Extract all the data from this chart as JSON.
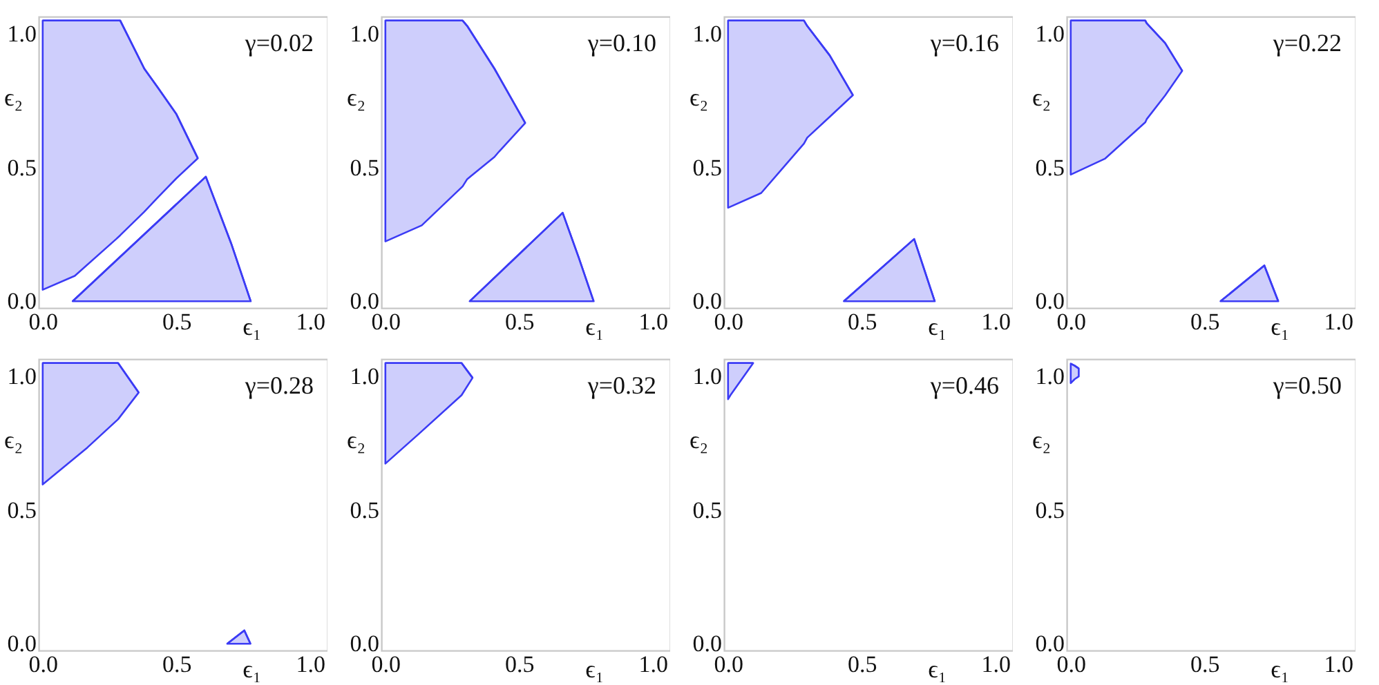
{
  "chart_data": [
    {
      "type": "line",
      "title": "γ=0.02",
      "xlabel": "ϵ₁",
      "ylabel": "ϵ₂",
      "xlim": [
        -0.015,
        1.065
      ],
      "ylim": [
        -0.025,
        1.065
      ],
      "xticks": [
        {
          "value": 0,
          "label": "0.0"
        },
        {
          "value": 0.5,
          "label": "0.5"
        },
        {
          "value": 1,
          "label": "1.0"
        }
      ],
      "yticks": [
        {
          "value": 0,
          "label": "0.0"
        },
        {
          "value": 0.5,
          "label": "0.5"
        },
        {
          "value": 1,
          "label": "1.0"
        }
      ],
      "series": [
        {
          "color": "#3b3bf5",
          "x": [
            0,
            0.12,
            0.275,
            0.29,
            0.38,
            0.43,
            0.5,
            0.58
          ],
          "values": [
            1.05,
            1.05,
            1.05,
            1.05,
            0.87,
            0.8,
            0.7,
            0.535
          ],
          "upper": [
            1.05,
            1.05,
            1.05,
            1.05,
            0.87,
            0.8,
            0.7,
            0.535
          ],
          "lower": [
            0.043,
            0.095,
            0.233,
            0.247,
            0.335,
            0.388,
            0.46,
            0.535
          ]
        },
        {
          "color": "#3b3bf5",
          "x": [
            0.112,
            0.61,
            0.705,
            0.778
          ],
          "values": [
            0,
            0.466,
            0.216,
            0
          ],
          "upper": [
            0,
            0.466,
            0.216,
            0
          ],
          "lower": [
            0,
            0,
            0,
            0
          ]
        }
      ]
    },
    {
      "type": "line",
      "title": "γ=0.10",
      "xlabel": "ϵ₁",
      "ylabel": "ϵ₂",
      "xlim": [
        -0.015,
        1.065
      ],
      "ylim": [
        -0.025,
        1.065
      ],
      "xticks": [
        {
          "value": 0,
          "label": "0.0"
        },
        {
          "value": 0.5,
          "label": "0.5"
        },
        {
          "value": 1,
          "label": "1.0"
        }
      ],
      "yticks": [
        {
          "value": 0,
          "label": "0.0"
        },
        {
          "value": 0.5,
          "label": "0.5"
        },
        {
          "value": 1,
          "label": "1.0"
        }
      ],
      "series": [
        {
          "color": "#3b3bf5",
          "x": [
            0,
            0.136,
            0.289,
            0.306,
            0.408,
            0.425,
            0.523
          ],
          "values": [
            1.05,
            1.05,
            1.05,
            1.03,
            0.87,
            0.84,
            0.667
          ],
          "upper": [
            1.05,
            1.05,
            1.05,
            1.03,
            0.87,
            0.84,
            0.667
          ],
          "lower": [
            0.224,
            0.284,
            0.43,
            0.457,
            0.54,
            0.56,
            0.667
          ]
        },
        {
          "color": "#3b3bf5",
          "x": [
            0.315,
            0.663,
            0.723,
            0.779
          ],
          "values": [
            0,
            0.331,
            0.164,
            0
          ],
          "upper": [
            0,
            0.331,
            0.164,
            0
          ],
          "lower": [
            0,
            0,
            0,
            0
          ]
        }
      ]
    },
    {
      "type": "line",
      "title": "γ=0.16",
      "xlabel": "ϵ₁",
      "ylabel": "ϵ₂",
      "xlim": [
        -0.015,
        1.065
      ],
      "ylim": [
        -0.025,
        1.065
      ],
      "xticks": [
        {
          "value": 0,
          "label": "0.0"
        },
        {
          "value": 0.5,
          "label": "0.5"
        },
        {
          "value": 1,
          "label": "1.0"
        }
      ],
      "yticks": [
        {
          "value": 0,
          "label": "0.0"
        },
        {
          "value": 0.5,
          "label": "0.5"
        },
        {
          "value": 1,
          "label": "1.0"
        }
      ],
      "series": [
        {
          "color": "#3b3bf5",
          "x": [
            0,
            0.124,
            0.284,
            0.296,
            0.38,
            0.467
          ],
          "values": [
            1.05,
            1.05,
            1.05,
            1.03,
            0.92,
            0.771
          ],
          "upper": [
            1.05,
            1.05,
            1.05,
            1.03,
            0.92,
            0.771
          ],
          "lower": [
            0.35,
            0.405,
            0.59,
            0.612,
            0.69,
            0.771
          ]
        },
        {
          "color": "#3b3bf5",
          "x": [
            0.433,
            0.696,
            0.773
          ],
          "values": [
            0,
            0.233,
            0
          ],
          "upper": [
            0,
            0.233,
            0
          ],
          "lower": [
            0,
            0,
            0
          ]
        }
      ]
    },
    {
      "type": "line",
      "title": "γ=0.22",
      "xlabel": "ϵ₁",
      "ylabel": "ϵ₂",
      "xlim": [
        -0.015,
        1.065
      ],
      "ylim": [
        -0.025,
        1.065
      ],
      "xticks": [
        {
          "value": 0,
          "label": "0.0"
        },
        {
          "value": 0.5,
          "label": "0.5"
        },
        {
          "value": 1,
          "label": "1.0"
        }
      ],
      "yticks": [
        {
          "value": 0,
          "label": "0.0"
        },
        {
          "value": 0.5,
          "label": "0.5"
        },
        {
          "value": 1,
          "label": "1.0"
        }
      ],
      "series": [
        {
          "color": "#3b3bf5",
          "x": [
            0,
            0.129,
            0.279,
            0.284,
            0.353,
            0.417
          ],
          "values": [
            1.05,
            1.05,
            1.05,
            1.04,
            0.966,
            0.862
          ],
          "upper": [
            1.05,
            1.05,
            1.05,
            1.04,
            0.966,
            0.862
          ],
          "lower": [
            0.474,
            0.534,
            0.67,
            0.681,
            0.77,
            0.862
          ]
        },
        {
          "color": "#3b3bf5",
          "x": [
            0.56,
            0.724,
            0.776
          ],
          "values": [
            0,
            0.134,
            0
          ],
          "upper": [
            0,
            0.134,
            0
          ],
          "lower": [
            0,
            0,
            0
          ]
        }
      ]
    },
    {
      "type": "line",
      "title": "γ=0.28",
      "xlabel": "ϵ₁",
      "ylabel": "ϵ₂",
      "xlim": [
        -0.015,
        1.065
      ],
      "ylim": [
        -0.025,
        1.065
      ],
      "xticks": [
        {
          "value": 0,
          "label": "0.0"
        },
        {
          "value": 0.5,
          "label": "0.5"
        },
        {
          "value": 1,
          "label": "1.0"
        }
      ],
      "yticks": [
        {
          "value": 0,
          "label": "0.0"
        },
        {
          "value": 0.5,
          "label": "0.5"
        },
        {
          "value": 1,
          "label": "1.0"
        }
      ],
      "series": [
        {
          "color": "#3b3bf5",
          "x": [
            0,
            0.167,
            0.282,
            0.359
          ],
          "values": [
            1.05,
            1.05,
            1.05,
            0.94
          ],
          "upper": [
            1.05,
            1.05,
            1.05,
            0.94
          ],
          "lower": [
            0.596,
            0.734,
            0.84,
            0.94
          ]
        },
        {
          "color": "#3b3bf5",
          "x": [
            0.69,
            0.754,
            0.777
          ],
          "values": [
            0,
            0.05,
            0
          ],
          "upper": [
            0,
            0.05,
            0
          ],
          "lower": [
            0,
            0,
            0
          ]
        }
      ]
    },
    {
      "type": "line",
      "title": "γ=0.32",
      "xlabel": "ϵ₁",
      "ylabel": "ϵ₂",
      "xlim": [
        -0.015,
        1.065
      ],
      "ylim": [
        -0.025,
        1.065
      ],
      "xticks": [
        {
          "value": 0,
          "label": "0.0"
        },
        {
          "value": 0.5,
          "label": "0.5"
        },
        {
          "value": 1,
          "label": "1.0"
        }
      ],
      "yticks": [
        {
          "value": 0,
          "label": "0.0"
        },
        {
          "value": 0.5,
          "label": "0.5"
        },
        {
          "value": 1,
          "label": "1.0"
        }
      ],
      "series": [
        {
          "color": "#3b3bf5",
          "x": [
            0,
            0.125,
            0.285,
            0.326
          ],
          "values": [
            1.05,
            1.05,
            1.05,
            0.995
          ],
          "upper": [
            1.05,
            1.05,
            1.05,
            0.995
          ],
          "lower": [
            0.674,
            0.785,
            0.93,
            0.995
          ]
        }
      ]
    },
    {
      "type": "line",
      "title": "γ=0.46",
      "xlabel": "ϵ₁",
      "ylabel": "ϵ₂",
      "xlim": [
        -0.015,
        1.065
      ],
      "ylim": [
        -0.025,
        1.065
      ],
      "xticks": [
        {
          "value": 0,
          "label": "0.0"
        },
        {
          "value": 0.5,
          "label": "0.5"
        },
        {
          "value": 1,
          "label": "1.0"
        }
      ],
      "yticks": [
        {
          "value": 0,
          "label": "0.0"
        },
        {
          "value": 0.5,
          "label": "0.5"
        },
        {
          "value": 1,
          "label": "1.0"
        }
      ],
      "series": [
        {
          "color": "#3b3bf5",
          "x": [
            0,
            0.009,
            0.094
          ],
          "values": [
            1.05,
            1.05,
            1.05
          ],
          "upper": [
            1.05,
            1.05,
            1.05
          ],
          "lower": [
            0.915,
            0.93,
            1.05
          ]
        }
      ]
    },
    {
      "type": "line",
      "title": "γ=0.50",
      "xlabel": "ϵ₁",
      "ylabel": "ϵ₂",
      "xlim": [
        -0.015,
        1.065
      ],
      "ylim": [
        -0.025,
        1.065
      ],
      "xticks": [
        {
          "value": 0,
          "label": "0.0"
        },
        {
          "value": 0.5,
          "label": "0.5"
        },
        {
          "value": 1,
          "label": "1.0"
        }
      ],
      "yticks": [
        {
          "value": 0,
          "label": "0.0"
        },
        {
          "value": 0.5,
          "label": "0.5"
        },
        {
          "value": 1,
          "label": "1.0"
        }
      ],
      "series": [
        {
          "color": "#3b3bf5",
          "x": [
            0,
            0.015,
            0.03
          ],
          "values": [
            1.048,
            1.04,
            1.03
          ],
          "upper": [
            1.048,
            1.04,
            1.03
          ],
          "lower": [
            0.975,
            0.99,
            1.0
          ]
        }
      ]
    }
  ]
}
